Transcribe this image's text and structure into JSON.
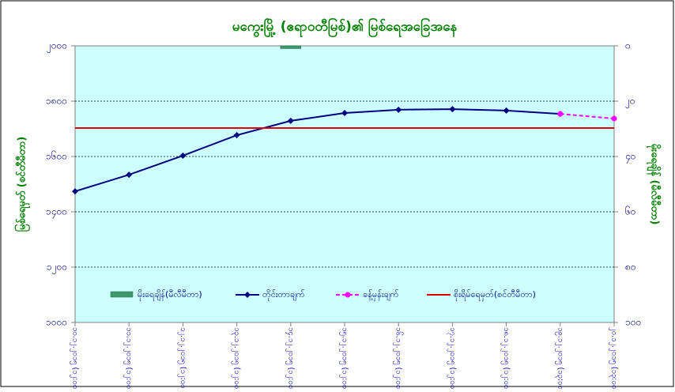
{
  "chart_data": {
    "type": "line",
    "title": "မကွေးမြို့ (ဧရာဝတီမြစ်)၏ မြစ်ရေအခြေအနေ",
    "ylabel": "မြစ်ရေမှတ် (စင်တီမီတာ)",
    "y2label": "မိုးရေချိန် (မီလီမီတာ)",
    "categories": [
      "၁၀.၁၂.၂၀၁၅ (၁၂:၀၀)",
      "၁၁.၁၂.၂၀၁၅ (၁၂:၀၀)",
      "၁၂.၁၂.၂၀၁၅ (၁၂:၀၀)",
      "၁၃.၁၂.၂၀၁၅ (၁၂:၀၀)",
      "၁၄.၁၂.၂၀၁၅ (၁၂:၀၀)",
      "၁၅.၁၂.၂၀၁၅ (၁၂:၀၀)",
      "၁၆.၁၂.၂၀၁၅ (၁၂:၀၀)",
      "၁၇.၁၂.၂၀၁၅ (၁၂:၀၀)",
      "၁၈.၁၂.၂၀၁၅ (၁၂:၀၀)",
      "၁၉.၁၂.၂၀၁၅ (၁၃:၀၀)",
      "၂၀.၁၂.၂၀၁၅ (၁၃:၀၀)"
    ],
    "ylim": [
      1000,
      2000
    ],
    "yticks": [
      {
        "value": 1000,
        "label": "၁၀၀၀"
      },
      {
        "value": 1200,
        "label": "၁၂၀၀"
      },
      {
        "value": 1400,
        "label": "၁၄၀၀"
      },
      {
        "value": 1600,
        "label": "၁၆၀၀"
      },
      {
        "value": 1800,
        "label": "၁၈၀၀"
      },
      {
        "value": 2000,
        "label": "၂၀၀၀"
      }
    ],
    "y2lim": [
      100,
      0
    ],
    "y2ticks": [
      {
        "value": 0,
        "label": "၀"
      },
      {
        "value": 20,
        "label": "၂၀"
      },
      {
        "value": 40,
        "label": "၄၀"
      },
      {
        "value": 60,
        "label": "၆၀"
      },
      {
        "value": 80,
        "label": "၈၀"
      },
      {
        "value": 100,
        "label": "၁၀၀"
      }
    ],
    "grid": true,
    "series": [
      {
        "name": "မိုးရေချိန်(မီလီမီတာ)",
        "kind": "bar",
        "axis": "y2",
        "color": "#3c9a6a",
        "values": [
          0,
          0,
          0,
          0,
          1,
          0,
          0,
          0,
          0,
          0,
          0
        ]
      },
      {
        "name": "တိုင်းတာချက်",
        "kind": "line",
        "color": "#000080",
        "values": [
          1474,
          1534,
          1603,
          1677,
          1729,
          1757,
          1769,
          1771,
          1766,
          1754,
          null
        ]
      },
      {
        "name": "ခန့်မှန်းချက်",
        "kind": "dashed",
        "color": "#ff00ff",
        "values": [
          null,
          null,
          null,
          null,
          null,
          null,
          null,
          null,
          null,
          1754,
          1737
        ]
      },
      {
        "name": "စိုးရိမ်ရေမှတ်(စင်တီမီတာ)",
        "kind": "plain",
        "color": "#e00000",
        "values": [
          1703,
          1703,
          1703,
          1703,
          1703,
          1703,
          1703,
          1703,
          1703,
          1703,
          1703
        ]
      }
    ]
  }
}
